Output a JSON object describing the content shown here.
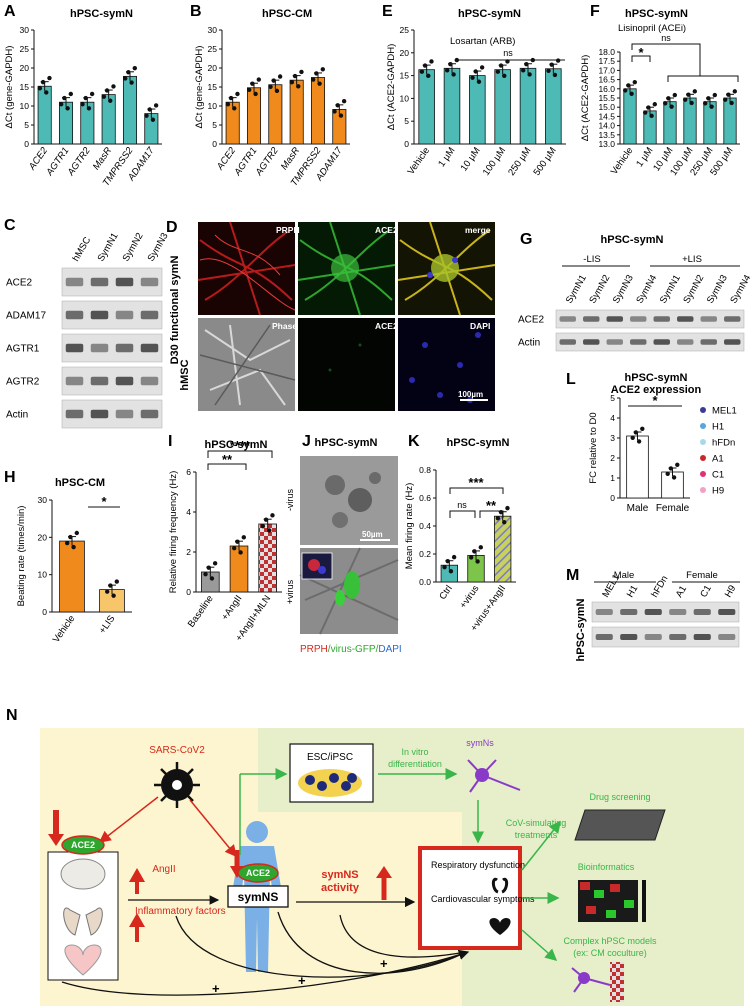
{
  "colors": {
    "teal": "#4dbab5",
    "orange": "#f08a1c",
    "lightorange": "#f7c56a",
    "gray": "#9a9a9a",
    "green": "#7cc44a",
    "olive": "#9fb64a",
    "red": "#d6281c",
    "greenArrow": "#39b54a",
    "bgYellow": "#fdf5cf",
    "bgGreen": "#e6efc9"
  },
  "panels": {
    "A": {
      "letter": "A",
      "title": "hPSC-symN"
    },
    "B": {
      "letter": "B",
      "title": "hPSC-CM"
    },
    "E": {
      "letter": "E",
      "title": "hPSC-symN",
      "subtitle": "Losartan (ARB)",
      "ns": "ns"
    },
    "F": {
      "letter": "F",
      "title": "hPSC-symN",
      "subtitle": "Lisinopril (ACEi)",
      "ns": "ns",
      "star": "*"
    },
    "C": {
      "letter": "C",
      "lanes": [
        "hMSC",
        "SymN1",
        "SymN2",
        "SymN3"
      ],
      "rows": [
        "ACE2",
        "ADAM17",
        "AGTR1",
        "AGTR2",
        "Actin"
      ]
    },
    "D": {
      "letter": "D",
      "row1": "D30 functional symN",
      "row2": "hMSC",
      "tiles": [
        "PRPH",
        "ACE2",
        "merge",
        "Phase",
        "ACE2",
        "DAPI"
      ],
      "scale": "100µm"
    },
    "G": {
      "letter": "G",
      "title": "hPSC-symN",
      "minus": "-LIS",
      "plus": "+LIS",
      "lanes": [
        "SymN1",
        "SymN2",
        "SymN3",
        "SymN4",
        "SymN1",
        "SymN2",
        "SymN3",
        "SymN4"
      ],
      "rows": [
        "ACE2",
        "Actin"
      ]
    },
    "H": {
      "letter": "H",
      "title": "hPSC-CM",
      "star": "*"
    },
    "I": {
      "letter": "I",
      "title": "hPSC-symN",
      "sig1": "**",
      "sig2": "****"
    },
    "J": {
      "letter": "J",
      "title": "hPSC-symN",
      "minus": "-virus",
      "plus": "+virus",
      "scale": "50µm",
      "leg_a": "PRPH",
      "leg_b": "/virus-GFP/",
      "leg_c": "DAPI"
    },
    "K": {
      "letter": "K",
      "title": "hPSC-symN",
      "ns": "ns",
      "sig1": "**",
      "sig2": "***"
    },
    "L": {
      "letter": "L",
      "title": "hPSC-symN",
      "subtitle": "ACE2 expression",
      "star": "*",
      "legend": [
        {
          "name": "MEL1",
          "color": "#3a3a9a"
        },
        {
          "name": "H1",
          "color": "#5aa6dc"
        },
        {
          "name": "hFDn",
          "color": "#a8d8ec"
        },
        {
          "name": "A1",
          "color": "#c8282c"
        },
        {
          "name": "C1",
          "color": "#e0307a"
        },
        {
          "name": "H9",
          "color": "#f2a0c6"
        }
      ]
    },
    "M": {
      "letter": "M",
      "side": "hPSC-symN",
      "male": "Male",
      "female": "Female",
      "lanes": [
        "MEL1",
        "H1",
        "hFDn",
        "A1",
        "C1",
        "H9"
      ]
    }
  },
  "chart_data": [
    {
      "panel": "A",
      "type": "bar",
      "title": "hPSC-symN",
      "ylabel": "ΔCt (gene-GAPDH)",
      "categories": [
        "ACE2",
        "AGTR1",
        "AGTR2",
        "MasR",
        "TMPRSS2",
        "ADAM17"
      ],
      "values": [
        15.2,
        11.0,
        11.0,
        13.0,
        17.8,
        8.0
      ],
      "ylim": [
        0,
        30
      ],
      "yticks": [
        "0",
        "5",
        "10",
        "15",
        "20",
        "25",
        "30"
      ]
    },
    {
      "panel": "B",
      "type": "bar",
      "title": "hPSC-CM",
      "ylabel": "ΔCt (gene-GAPDH)",
      "categories": [
        "ACE2",
        "AGTR1",
        "AGTR2",
        "MasR",
        "TMPRSS2",
        "ADAM17"
      ],
      "values": [
        11.0,
        14.8,
        15.6,
        16.8,
        17.5,
        9.1
      ],
      "ylim": [
        0,
        30
      ],
      "yticks": [
        "0",
        "5",
        "10",
        "15",
        "20",
        "25",
        "30"
      ]
    },
    {
      "panel": "E",
      "type": "bar",
      "title": "hPSC-symN",
      "ylabel": "ΔCt (ACE2-GAPDH)",
      "categories": [
        "Vehicle",
        "1 µM",
        "10 µM",
        "100 µM",
        "250 µM",
        "500 µM"
      ],
      "values": [
        16.3,
        16.6,
        15.0,
        16.3,
        16.6,
        16.5
      ],
      "ylim": [
        0,
        25
      ],
      "yticks": [
        "0",
        "5",
        "10",
        "15",
        "20",
        "25"
      ]
    },
    {
      "panel": "F",
      "type": "bar",
      "title": "hPSC-symN",
      "ylabel": "ΔCt (ACE2-GAPDH)",
      "categories": [
        "Vehicle",
        "1 µM",
        "10 µM",
        "100 µM",
        "250 µM",
        "500 µM"
      ],
      "values": [
        16.0,
        14.8,
        15.3,
        15.5,
        15.3,
        15.5
      ],
      "ylim": [
        13.0,
        18.0
      ],
      "yticks": [
        "13.0",
        "13.5",
        "14.0",
        "14.5",
        "15.0",
        "15.5",
        "16.0",
        "16.5",
        "17.0",
        "17.5",
        "18.0"
      ]
    },
    {
      "panel": "H",
      "type": "bar",
      "title": "hPSC-CM",
      "ylabel": "Beating rate (times/min)",
      "categories": [
        "Vehicle",
        "+LIS"
      ],
      "values": [
        19,
        6
      ],
      "ylim": [
        0,
        30
      ],
      "yticks": [
        "0",
        "10",
        "20",
        "30"
      ]
    },
    {
      "panel": "I",
      "type": "bar",
      "title": "hPSC-symN",
      "ylabel": "Relative firing frequency (Hz)",
      "categories": [
        "Baseline",
        "+AngII",
        "+AngII+MLN"
      ],
      "values": [
        1.0,
        2.3,
        3.4
      ],
      "ylim": [
        0,
        6
      ],
      "yticks": [
        "0",
        "2",
        "4",
        "6"
      ]
    },
    {
      "panel": "K",
      "type": "bar",
      "title": "hPSC-symN",
      "ylabel": "Mean firing rate (Hz)",
      "categories": [
        "Ctrl",
        "+virus",
        "+virus+AngII"
      ],
      "values": [
        0.12,
        0.19,
        0.47
      ],
      "ylim": [
        0,
        0.8
      ],
      "yticks": [
        "0.0",
        "0.2",
        "0.4",
        "0.6",
        "0.8"
      ]
    },
    {
      "panel": "L",
      "type": "bar",
      "title": "ACE2 expression",
      "ylabel": "FC relative to D0",
      "categories": [
        "Male",
        "Female"
      ],
      "values": [
        3.1,
        1.3
      ],
      "ylim": [
        0,
        5
      ],
      "yticks": [
        "0",
        "1",
        "2",
        "3",
        "4",
        "5"
      ]
    }
  ],
  "diagram": {
    "letter": "N",
    "virus": "SARS-CoV2",
    "ace2": "ACE2",
    "angii": "AngII",
    "inflam": "Inflammatory factors",
    "symns": "symNS",
    "activity": "symNS activity",
    "esc": "ESC/iPSC",
    "invitro": "In vitro differentiation",
    "symn_cell": "symNs",
    "cov": "CoV-simulating treatments",
    "resp": "Respiratory dysfunction",
    "cardio": "Cardiovascular symptoms",
    "drug": "Drug screening",
    "bio": "Bioinformatics",
    "complex": "Complex hPSC models (ex: CM coculture)",
    "plus": "+"
  }
}
